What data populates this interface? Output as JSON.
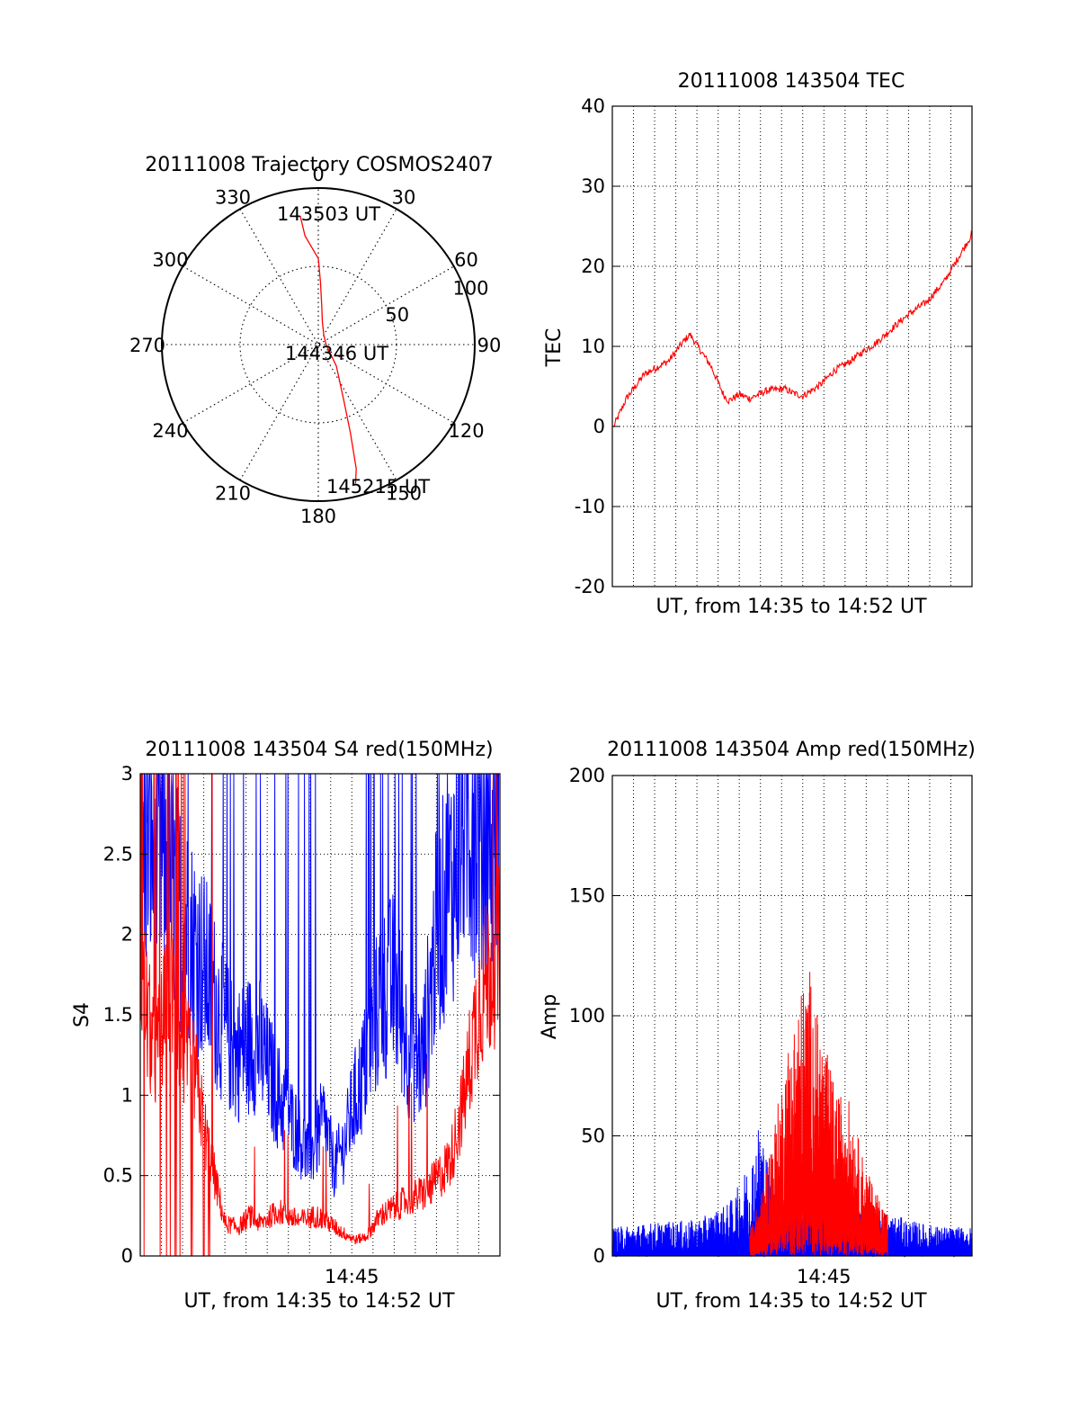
{
  "colors": {
    "primary": "#ff0000",
    "secondary": "#0000ff",
    "axis": "#000000",
    "background": "#ffffff"
  },
  "chart_data": [
    {
      "id": "polar",
      "type": "scatter",
      "title": "20111008 Trajectory COSMOS2407",
      "angle_labels": [
        "0",
        "30",
        "60",
        "90",
        "120",
        "150",
        "180",
        "210",
        "240",
        "270",
        "300",
        "330"
      ],
      "radial_labels": [
        "50",
        "100"
      ],
      "rlim": [
        0,
        100
      ],
      "grid": true,
      "annotations": [
        "143503 UT",
        "144346 UT",
        "145215 UT"
      ],
      "series": [
        {
          "color": "#ff0000",
          "points": [
            [
              352,
              83
            ],
            [
              353,
              70
            ],
            [
              0,
              55
            ],
            [
              2,
              40
            ],
            [
              5,
              25
            ],
            [
              10,
              15
            ],
            [
              30,
              7
            ],
            [
              90,
              5
            ],
            [
              140,
              18
            ],
            [
              155,
              38
            ],
            [
              160,
              60
            ],
            [
              163,
              83
            ],
            [
              165,
              92
            ]
          ]
        }
      ]
    },
    {
      "id": "tec",
      "type": "line",
      "title": "20111008 143504 TEC",
      "xlabel": "UT, from 14:35 to 14:52 UT",
      "ylabel": "TEC",
      "xlim": [
        "14:35",
        "14:52"
      ],
      "ylim": [
        -20,
        40
      ],
      "yticks": [
        "-20",
        "-10",
        "0",
        "10",
        "20",
        "30",
        "40"
      ],
      "xticks": [],
      "grid": true,
      "series": [
        {
          "color": "#ff0000",
          "x": [
            "14:35:04",
            "14:35:40",
            "14:36:30",
            "14:37:40",
            "14:38:20",
            "14:38:40",
            "14:39:40",
            "14:40:15",
            "14:40:30",
            "14:41:00",
            "14:41:30",
            "14:42:20",
            "14:43:10",
            "14:43:30",
            "14:44:00",
            "14:44:50",
            "14:45:30",
            "14:46:10",
            "14:46:40",
            "14:47:30",
            "14:48:20",
            "14:49:00",
            "14:49:50",
            "14:50:40",
            "14:51:20",
            "14:52:00"
          ],
          "y": [
            0,
            3.5,
            6.5,
            8.2,
            10.5,
            11.5,
            7.5,
            4,
            3.2,
            4,
            3.5,
            4.5,
            4.7,
            4.2,
            3.8,
            5.2,
            7,
            8,
            9,
            10.5,
            12.5,
            14,
            15.5,
            18,
            21,
            24
          ]
        }
      ]
    },
    {
      "id": "s4",
      "type": "line",
      "title": "20111008 143504 S4 red(150MHz)",
      "xlabel": "UT, from 14:35 to 14:52 UT",
      "ylabel": "S4",
      "xlim": [
        "14:35",
        "14:52"
      ],
      "ylim": [
        0,
        3
      ],
      "yticks": [
        "0",
        "0.5",
        "1",
        "1.5",
        "2",
        "2.5",
        "3"
      ],
      "xticks": [
        "14:45"
      ],
      "grid": true,
      "series": [
        {
          "color": "#0000ff",
          "x": [
            "14:35:00",
            "14:36:00",
            "14:37:00",
            "14:38:00",
            "14:39:00",
            "14:39:30",
            "14:40:30",
            "14:41:30",
            "14:42:30",
            "14:43:00",
            "14:43:40",
            "14:44:10",
            "14:44:40",
            "14:45:00",
            "14:45:40",
            "14:46:20",
            "14:47:00",
            "14:47:40",
            "14:48:20",
            "14:49:00",
            "14:49:40",
            "14:50:20",
            "14:51:00",
            "14:51:40",
            "14:52:00"
          ],
          "y": [
            2.6,
            2.5,
            2.1,
            1.8,
            1.4,
            1.25,
            1.35,
            1.0,
            0.75,
            0.6,
            0.85,
            0.55,
            0.7,
            0.9,
            1.2,
            1.6,
            1.7,
            1.3,
            1.2,
            2.0,
            2.3,
            2.8,
            2.6,
            2.5,
            2.9
          ]
        },
        {
          "color": "#ff0000",
          "x": [
            "14:35:00",
            "14:35:40",
            "14:36:30",
            "14:37:00",
            "14:37:40",
            "14:38:00",
            "14:38:30",
            "14:39:00",
            "14:39:40",
            "14:40:10",
            "14:40:40",
            "14:41:30",
            "14:42:30",
            "14:43:20",
            "14:44:00",
            "14:44:30",
            "14:45:10",
            "14:45:40",
            "14:46:20",
            "14:47:00",
            "14:47:40",
            "14:48:30",
            "14:49:10",
            "14:49:40",
            "14:50:20",
            "14:51:00",
            "14:52:00"
          ],
          "y": [
            1.8,
            1.2,
            1.7,
            1.3,
            1.1,
            0.8,
            0.5,
            0.2,
            0.18,
            0.25,
            0.2,
            0.28,
            0.22,
            0.25,
            0.2,
            0.15,
            0.1,
            0.12,
            0.25,
            0.3,
            0.35,
            0.4,
            0.5,
            0.6,
            1.0,
            1.6,
            1.9
          ]
        }
      ]
    },
    {
      "id": "amp",
      "type": "line",
      "title": "20111008 143504 Amp red(150MHz)",
      "xlabel": "UT, from 14:35 to 14:52 UT",
      "ylabel": "Amp",
      "xlim": [
        "14:35",
        "14:52"
      ],
      "ylim": [
        0,
        200
      ],
      "yticks": [
        "0",
        "50",
        "100",
        "150",
        "200"
      ],
      "xticks": [
        "14:45"
      ],
      "grid": true,
      "series": [
        {
          "color": "#0000ff",
          "x": [
            "14:35:00",
            "14:37:00",
            "14:39:00",
            "14:40:30",
            "14:41:00",
            "14:41:40",
            "14:42:00",
            "14:42:20",
            "14:43:00",
            "14:43:40",
            "14:44:10",
            "14:44:50",
            "14:45:20",
            "14:46:00",
            "14:46:40",
            "14:47:20",
            "14:48:00",
            "14:49:00",
            "14:50:00",
            "14:51:00",
            "14:52:00"
          ],
          "y": [
            12,
            14,
            15,
            22,
            30,
            45,
            60,
            40,
            30,
            35,
            40,
            30,
            45,
            30,
            25,
            22,
            18,
            15,
            13,
            12,
            12
          ]
        },
        {
          "color": "#ff0000",
          "x": [
            "14:41:30",
            "14:42:00",
            "14:42:30",
            "14:43:00",
            "14:43:20",
            "14:43:40",
            "14:44:00",
            "14:44:20",
            "14:44:40",
            "14:45:00",
            "14:45:20",
            "14:45:40",
            "14:46:00",
            "14:46:20",
            "14:46:40",
            "14:47:00",
            "14:47:20",
            "14:47:40",
            "14:48:00"
          ],
          "y": [
            10,
            20,
            40,
            60,
            75,
            85,
            95,
            100,
            85,
            75,
            65,
            55,
            60,
            50,
            40,
            30,
            25,
            20,
            15
          ]
        }
      ]
    }
  ]
}
